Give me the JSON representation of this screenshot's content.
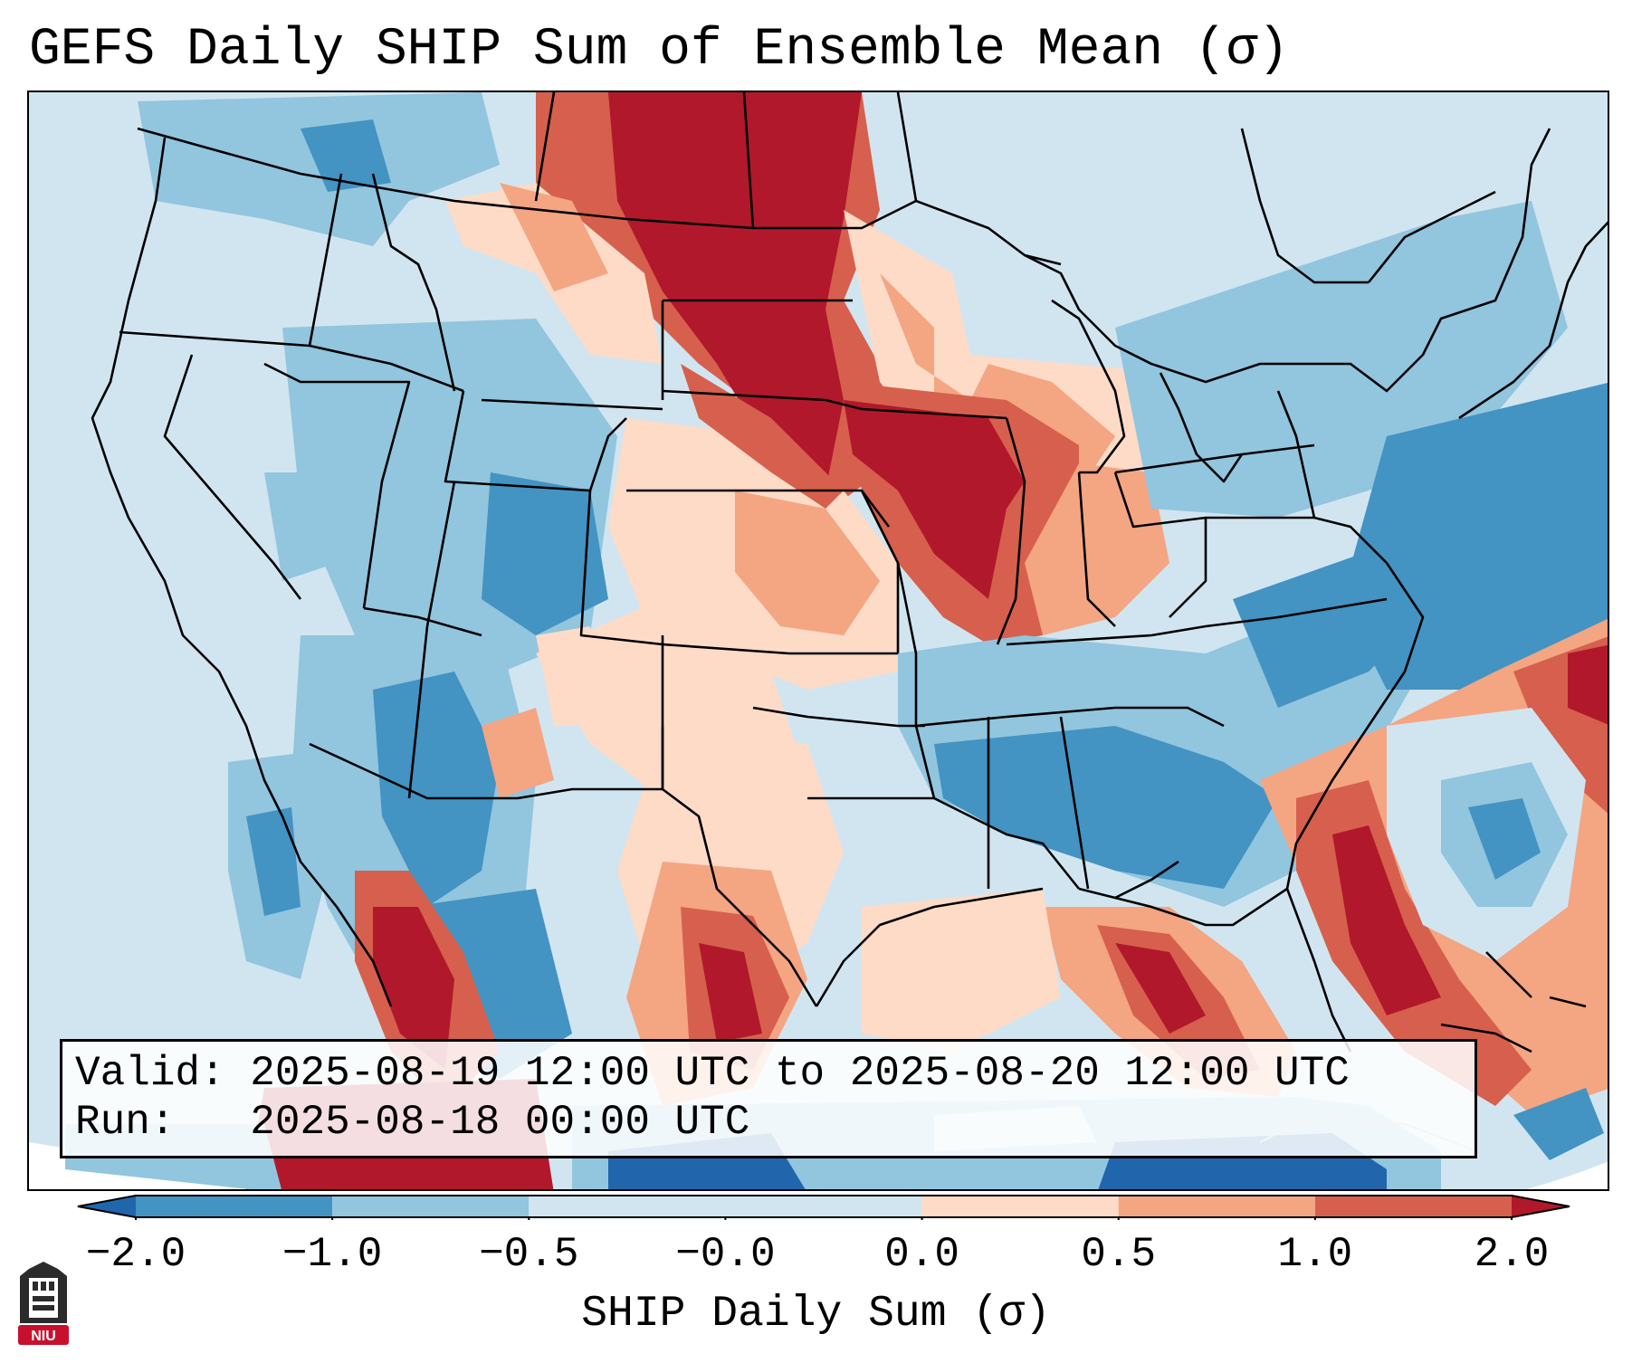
{
  "title": "GEFS Daily SHIP Sum of Ensemble Mean (σ)",
  "valid_label": "Valid:",
  "valid_value": "2025-08-19 12:00 UTC to 2025-08-20 12:00 UTC",
  "run_label": "Run:",
  "run_value": "2025-08-18 00:00 UTC",
  "colorbar": {
    "label": "SHIP Daily Sum (σ)",
    "ticks": [
      "−2.0",
      "−1.0",
      "−0.5",
      "−0.0",
      "0.0",
      "0.5",
      "1.0",
      "2.0"
    ],
    "colors": [
      "#2166ac",
      "#4393c3",
      "#92c5de",
      "#d1e5f0",
      "#fddbc7",
      "#f4a582",
      "#d6604d",
      "#b2182b"
    ]
  },
  "logo": {
    "text": "NIU",
    "icon": "niu-logo-icon"
  }
}
